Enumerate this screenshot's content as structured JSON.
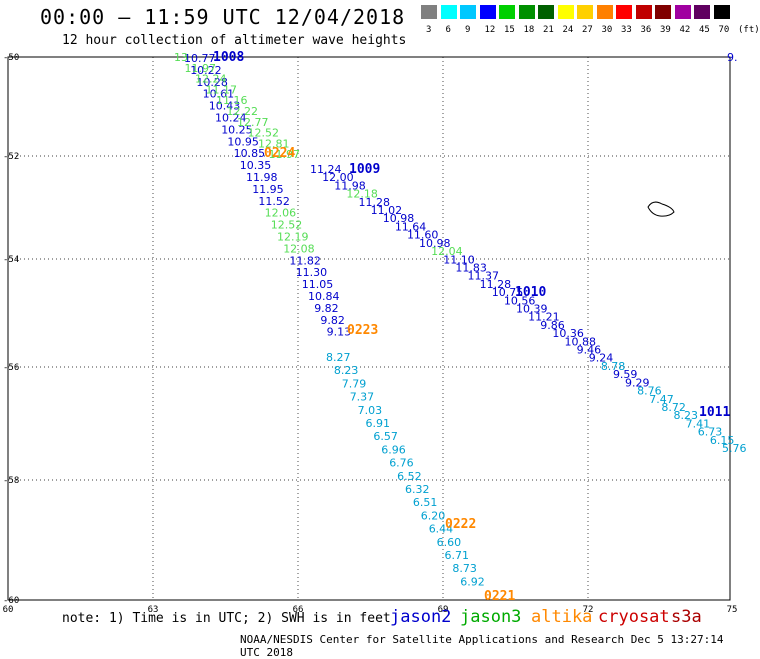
{
  "title": "00:00 – 11:59 UTC 12/04/2018",
  "subtitle": "12 hour collection of altimeter wave heights",
  "scale": {
    "colors": [
      "#808080",
      "#00ffff",
      "#00c8ff",
      "#0000ff",
      "#00d000",
      "#009000",
      "#006000",
      "#ffff00",
      "#ffd000",
      "#ff8000",
      "#ff0000",
      "#c00000",
      "#800000",
      "#a000a0",
      "#600060",
      "#000000"
    ],
    "labels": [
      "3",
      "6",
      "9",
      "12",
      "15",
      "18",
      "21",
      "24",
      "27",
      "30",
      "33",
      "36",
      "39",
      "42",
      "45",
      "70",
      "(ft)"
    ]
  },
  "axes": {
    "lat_labels": [
      "-50",
      "-52",
      "-54",
      "-56",
      "-58",
      "-60"
    ],
    "lon_labels": [
      "60",
      "63",
      "66",
      "69",
      "72",
      "75"
    ]
  },
  "note": "note: 1) Time is in UTC; 2) SWH is in feet",
  "satellites": [
    {
      "name": "jason2",
      "color": "#0000cc"
    },
    {
      "name": "jason3",
      "color": "#00aa00"
    },
    {
      "name": "altika",
      "color": "#ff8800"
    },
    {
      "name": "cryosat",
      "color": "#cc0000"
    },
    {
      "name": "s3a",
      "color": "#aa0000"
    }
  ],
  "footer": "NOAA/NESDIS Center for Satellite Applications and Research   Dec  5 13:27:14 UTC 2018",
  "times": [
    {
      "label": "1008",
      "color": "#0000cc"
    },
    {
      "label": "0224",
      "color": "#ff8800"
    },
    {
      "label": "1009",
      "color": "#0000cc"
    },
    {
      "label": "1010",
      "color": "#0000cc"
    },
    {
      "label": "0223",
      "color": "#ff8800"
    },
    {
      "label": "1011",
      "color": "#0000cc"
    },
    {
      "label": "0222",
      "color": "#ff8800"
    },
    {
      "label": "0221",
      "color": "#ff8800"
    }
  ],
  "edge_value": "9.",
  "tracks": {
    "A": {
      "color_blue": "#0000cc",
      "color_green": "#55dd55",
      "values": [
        "10.77",
        "10.22",
        "10.28",
        "10.61",
        "10.43",
        "10.24",
        "10.25",
        "10.95",
        "10.85",
        "10.35",
        "11.98",
        "11.95",
        "11.52",
        "12.06",
        "12.52",
        "12.19",
        "12.08",
        "11.82",
        "11.30",
        "11.05",
        "10.84",
        "9.82",
        "9.82",
        "9.13"
      ],
      "colors": [
        "b",
        "b",
        "b",
        "b",
        "b",
        "b",
        "b",
        "b",
        "b",
        "b",
        "b",
        "b",
        "b",
        "g",
        "g",
        "g",
        "g",
        "b",
        "b",
        "b",
        "b",
        "b",
        "b",
        "b"
      ]
    },
    "B": {
      "values": [
        "13",
        "11.97",
        "12.24",
        "11.17",
        "11.16",
        "12.22",
        "12.77",
        "12.52",
        "12.81",
        "11.97"
      ],
      "color": "#55dd55"
    },
    "C": {
      "values": [
        "11.24",
        "12.00",
        "11.98",
        "12.18",
        "11.28",
        "11.02",
        "10.98",
        "11.64",
        "11.60",
        "10.98",
        "12.04",
        "11.10",
        "11.83",
        "11.37",
        "11.28",
        "10.75",
        "10.56",
        "10.39",
        "11.21",
        "9.86",
        "10.36",
        "10.88",
        "9.46",
        "9.24",
        "8.78",
        "9.59",
        "9.29",
        "8.76",
        "7.47",
        "8.72",
        "8.23",
        "7.41",
        "6.73",
        "6.15",
        "5.76"
      ],
      "colors": [
        "b",
        "b",
        "b",
        "g",
        "b",
        "b",
        "b",
        "b",
        "b",
        "b",
        "g",
        "b",
        "b",
        "b",
        "b",
        "b",
        "b",
        "b",
        "b",
        "b",
        "b",
        "b",
        "b",
        "b",
        "c",
        "b",
        "b",
        "c",
        "c",
        "c",
        "c",
        "c",
        "c",
        "c",
        "c"
      ]
    },
    "D": {
      "values": [
        "8.27",
        "8.23",
        "7.79",
        "7.37",
        "7.03",
        "6.91",
        "6.57",
        "6.96",
        "6.76",
        "6.52",
        "6.32",
        "6.51",
        "6.20",
        "6.44",
        "6.60",
        "6.71",
        "8.73",
        "6.92"
      ],
      "color": "#00a0d0"
    }
  }
}
